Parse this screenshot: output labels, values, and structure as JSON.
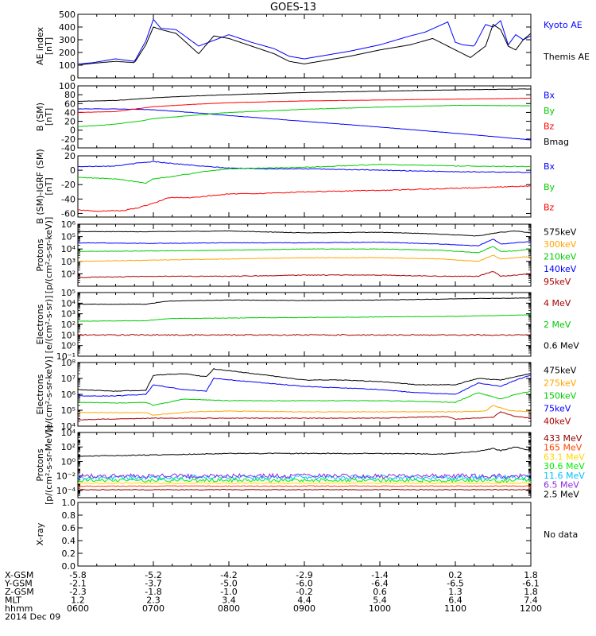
{
  "title": "GOES-13",
  "footer": {
    "rows": [
      {
        "label": "X-GSM",
        "values": [
          "-5.8",
          "-5.2",
          "-4.2",
          "-2.9",
          "-1.4",
          "0.2",
          "1.8"
        ]
      },
      {
        "label": "Y-GSM",
        "values": [
          "-2.1",
          "-3.7",
          "-5.0",
          "-6.0",
          "-6.4",
          "-6.5",
          "-6.1"
        ]
      },
      {
        "label": "Z-GSM",
        "values": [
          "-2.3",
          "-1.8",
          "-1.0",
          "-0.2",
          "0.6",
          "1.3",
          "1.8"
        ]
      },
      {
        "label": "MLT",
        "values": [
          "1.2",
          "2.3",
          "3.4",
          "4.4",
          "5.4",
          "6.4",
          "7.4"
        ]
      },
      {
        "label": "hhmm",
        "values": [
          "0600",
          "0700",
          "0800",
          "0900",
          "1000",
          "1100",
          "1200"
        ]
      }
    ],
    "date": "2014 Dec 09"
  },
  "chart_data": [
    {
      "type": "line",
      "id": "ae",
      "ylabel": "AE index\n[nT]",
      "yscale": "linear",
      "ylim": [
        0,
        500
      ],
      "yticks": [
        0,
        100,
        200,
        300,
        400,
        500
      ],
      "ytick_labels": [
        "0",
        "100",
        "200",
        "300",
        "400",
        "500"
      ],
      "xlim": [
        6,
        12
      ],
      "xtick_labels": [
        "0600",
        "0700",
        "0800",
        "0900",
        "1000",
        "1100",
        "1200"
      ],
      "series": [
        {
          "name": "Kyoto AE",
          "color": "#0000ff",
          "noise": 0.08,
          "x": [
            6.0,
            6.2,
            6.5,
            6.75,
            6.9,
            7.0,
            7.1,
            7.3,
            7.6,
            8.0,
            8.3,
            8.6,
            8.8,
            9.0,
            9.3,
            9.6,
            10.0,
            10.4,
            10.6,
            10.9,
            11.0,
            11.1,
            11.25,
            11.4,
            11.5,
            11.6,
            11.7,
            11.8,
            11.9,
            12.0
          ],
          "y": [
            110,
            120,
            150,
            130,
            290,
            460,
            390,
            380,
            250,
            340,
            280,
            230,
            170,
            150,
            180,
            210,
            260,
            330,
            360,
            440,
            280,
            260,
            250,
            420,
            400,
            450,
            260,
            340,
            300,
            330
          ]
        },
        {
          "name": "Themis AE",
          "color": "#000000",
          "noise": 0.06,
          "x": [
            6.0,
            6.2,
            6.5,
            6.75,
            6.9,
            7.0,
            7.1,
            7.3,
            7.6,
            7.8,
            8.0,
            8.3,
            8.6,
            8.8,
            9.0,
            9.3,
            9.6,
            10.0,
            10.4,
            10.7,
            11.0,
            11.2,
            11.4,
            11.5,
            11.6,
            11.7,
            11.8,
            11.9,
            12.0
          ],
          "y": [
            100,
            115,
            130,
            120,
            260,
            400,
            380,
            350,
            190,
            330,
            310,
            250,
            190,
            130,
            110,
            140,
            170,
            220,
            260,
            310,
            220,
            160,
            250,
            420,
            380,
            250,
            220,
            300,
            350
          ]
        }
      ]
    },
    {
      "type": "line",
      "id": "bsm",
      "ylabel": "B (SM)\n[nT]",
      "yscale": "linear",
      "ylim": [
        -40,
        100
      ],
      "yticks": [
        -40,
        -20,
        0,
        20,
        40,
        60,
        80,
        100
      ],
      "ytick_labels": [
        "-40",
        "-20",
        "0",
        "20",
        "40",
        "60",
        "80",
        "100"
      ],
      "xlim": [
        6,
        12
      ],
      "series": [
        {
          "name": "Bx",
          "color": "#0000ff",
          "noise": 0.3,
          "x": [
            6.0,
            6.5,
            7.0,
            7.5,
            8.0,
            9.0,
            10.0,
            11.0,
            12.0
          ],
          "y": [
            48,
            48,
            46,
            40,
            33,
            20,
            7,
            -7,
            -22
          ]
        },
        {
          "name": "By",
          "color": "#00cc00",
          "noise": 0.4,
          "x": [
            6.0,
            6.4,
            6.8,
            7.0,
            7.5,
            8.0,
            9.0,
            10.0,
            11.0,
            12.0
          ],
          "y": [
            8,
            12,
            20,
            26,
            33,
            40,
            47,
            52,
            56,
            55
          ]
        },
        {
          "name": "Bz",
          "color": "#ff0000",
          "noise": 0.3,
          "x": [
            6.0,
            6.5,
            7.0,
            7.5,
            8.0,
            9.0,
            10.0,
            11.0,
            12.0
          ],
          "y": [
            40,
            42,
            53,
            58,
            62,
            66,
            68,
            70,
            72
          ]
        },
        {
          "name": "Bmag",
          "color": "#000000",
          "noise": 0.3,
          "x": [
            6.0,
            6.5,
            7.0,
            7.5,
            8.0,
            9.0,
            10.0,
            11.0,
            12.0
          ],
          "y": [
            65,
            67,
            73,
            77,
            80,
            85,
            88,
            91,
            93
          ]
        }
      ]
    },
    {
      "type": "line",
      "id": "bigrf",
      "ylabel": "B (SM)-IGRF (SM)\n[nT]",
      "yscale": "linear",
      "ylim": [
        -65,
        20
      ],
      "yticks": [
        -60,
        -40,
        -20,
        0,
        20
      ],
      "ytick_labels": [
        "-60",
        "-40",
        "-20",
        "0",
        "20"
      ],
      "xlim": [
        6,
        12
      ],
      "series": [
        {
          "name": "Bx",
          "color": "#0000ff",
          "noise": 0.5,
          "x": [
            6.0,
            6.5,
            6.8,
            7.0,
            7.3,
            7.6,
            8.0,
            8.5,
            9.0,
            10.0,
            11.0,
            12.0
          ],
          "y": [
            5,
            6,
            10,
            12,
            9,
            6,
            3,
            2,
            2,
            0,
            -2,
            -3
          ]
        },
        {
          "name": "By",
          "color": "#00cc00",
          "noise": 0.5,
          "x": [
            6.0,
            6.5,
            6.9,
            7.0,
            7.3,
            7.6,
            8.0,
            8.5,
            9.0,
            10.0,
            11.0,
            12.0
          ],
          "y": [
            -10,
            -12,
            -18,
            -12,
            -8,
            -3,
            2,
            3,
            4,
            8,
            6,
            5
          ]
        },
        {
          "name": "Bz",
          "color": "#ff0000",
          "noise": 0.6,
          "x": [
            6.0,
            6.3,
            6.6,
            6.8,
            7.0,
            7.2,
            7.5,
            8.0,
            8.5,
            9.0,
            10.0,
            11.0,
            12.0
          ],
          "y": [
            -55,
            -57,
            -56,
            -52,
            -46,
            -38,
            -38,
            -33,
            -32,
            -30,
            -28,
            -25,
            -22
          ]
        }
      ]
    },
    {
      "type": "line",
      "id": "protons1",
      "ylabel": "Protons\n[p/(cm²-s-sr-keV)]",
      "yscale": "log",
      "ylim": [
        1,
        6
      ],
      "yticks": [
        2,
        3,
        4,
        5,
        6
      ],
      "ytick_labels": [
        "10²",
        "10³",
        "10⁴",
        "10⁵",
        "10⁶"
      ],
      "xlim": [
        6,
        12
      ],
      "series": [
        {
          "name": "575keV",
          "color": "#000000",
          "noise": 0.02,
          "x": [
            6.0,
            7.0,
            8.0,
            9.0,
            10.0,
            10.8,
            11.3,
            11.6,
            11.8,
            12.0
          ],
          "y": [
            5.4,
            5.4,
            5.45,
            5.3,
            5.35,
            5.2,
            5.05,
            5.35,
            5.45,
            5.3
          ]
        },
        {
          "name": "300keV",
          "color": "#ffa500",
          "noise": 0.02,
          "x": [
            6.0,
            7.0,
            8.0,
            9.0,
            10.0,
            10.8,
            11.3,
            11.5,
            11.6,
            11.8,
            12.0
          ],
          "y": [
            3.0,
            3.1,
            3.2,
            3.3,
            3.3,
            3.2,
            3.0,
            3.5,
            3.2,
            3.3,
            3.4
          ]
        },
        {
          "name": "210keV",
          "color": "#00cc00",
          "noise": 0.02,
          "x": [
            6.0,
            7.0,
            8.0,
            9.0,
            10.0,
            10.8,
            11.3,
            11.5,
            11.6,
            11.8,
            12.0
          ],
          "y": [
            3.8,
            3.85,
            3.9,
            4.0,
            4.0,
            3.9,
            3.7,
            4.2,
            3.8,
            3.85,
            4.0
          ]
        },
        {
          "name": "140keV",
          "color": "#0000ff",
          "noise": 0.02,
          "x": [
            6.0,
            7.0,
            8.0,
            9.0,
            10.0,
            10.8,
            11.3,
            11.5,
            11.6,
            11.8,
            12.0
          ],
          "y": [
            4.5,
            4.45,
            4.5,
            4.5,
            4.55,
            4.4,
            4.25,
            4.8,
            4.4,
            4.5,
            4.6
          ]
        },
        {
          "name": "95keV",
          "color": "#aa0000",
          "noise": 0.03,
          "x": [
            6.0,
            7.0,
            8.0,
            9.0,
            10.0,
            10.8,
            11.3,
            11.5,
            11.6,
            11.8,
            12.0
          ],
          "y": [
            1.7,
            1.8,
            1.8,
            1.9,
            1.9,
            1.8,
            1.8,
            2.2,
            1.8,
            1.9,
            2.0
          ]
        }
      ]
    },
    {
      "type": "line",
      "id": "electrons1",
      "ylabel": "Electrons\n[e/(cm²-s-sr)]",
      "yscale": "log",
      "ylim": [
        -1,
        5
      ],
      "yticks": [
        -1,
        0,
        1,
        2,
        3,
        4,
        5
      ],
      "ytick_labels": [
        "10⁻¹",
        "10⁰",
        "10¹",
        "10²",
        "10³",
        "10⁴",
        "10⁵"
      ],
      "xlim": [
        6,
        12
      ],
      "series": [
        {
          "name": "4 MeV",
          "color": "#aa0000",
          "noise": 0.06,
          "x": [
            6.0,
            12.0
          ],
          "y": [
            1.0,
            1.0
          ]
        },
        {
          "name": "2 MeV",
          "color": "#00cc00",
          "noise": 0.02,
          "x": [
            6.0,
            6.9,
            7.2,
            8.0,
            9.0,
            10.0,
            11.0,
            12.0
          ],
          "y": [
            2.3,
            2.35,
            2.55,
            2.6,
            2.65,
            2.7,
            2.75,
            2.9
          ]
        },
        {
          "name": "0.6 MeV",
          "color": "#000000",
          "noise": 0.02,
          "x": [
            6.0,
            6.9,
            7.2,
            8.0,
            9.0,
            10.0,
            11.0,
            12.0
          ],
          "y": [
            3.9,
            3.9,
            4.2,
            4.3,
            4.25,
            4.3,
            4.4,
            4.5
          ]
        }
      ]
    },
    {
      "type": "line",
      "id": "electrons2",
      "ylabel": "Electrons\n[e/(cm²-s-sr-keV)]",
      "yscale": "log",
      "ylim": [
        4,
        8
      ],
      "yticks": [
        4,
        5,
        6,
        7,
        8
      ],
      "ytick_labels": [
        "10⁴",
        "10⁵",
        "10⁶",
        "10⁷",
        "10⁸"
      ],
      "xlim": [
        6,
        12
      ],
      "series": [
        {
          "name": "475keV",
          "color": "#000000",
          "noise": 0.02,
          "x": [
            6.0,
            6.5,
            6.9,
            7.0,
            7.4,
            7.7,
            7.8,
            8.5,
            9.0,
            9.5,
            10.0,
            10.5,
            11.0,
            11.3,
            11.6,
            11.8,
            12.0
          ],
          "y": [
            6.3,
            6.2,
            6.25,
            7.2,
            7.3,
            7.1,
            7.6,
            7.2,
            6.9,
            6.9,
            6.8,
            6.6,
            6.6,
            7.0,
            6.9,
            7.1,
            7.3
          ]
        },
        {
          "name": "275keV",
          "color": "#ffa500",
          "noise": 0.02,
          "x": [
            6.0,
            6.9,
            7.0,
            7.5,
            8.0,
            9.0,
            10.0,
            10.5,
            11.0,
            11.4,
            11.5,
            11.7,
            12.0
          ],
          "y": [
            4.85,
            4.85,
            4.7,
            4.9,
            4.95,
            4.9,
            4.9,
            4.9,
            4.9,
            4.95,
            5.3,
            5.0,
            4.9
          ]
        },
        {
          "name": "150keV",
          "color": "#00cc00",
          "noise": 0.02,
          "x": [
            6.0,
            6.5,
            6.9,
            7.0,
            7.4,
            8.0,
            9.0,
            10.0,
            10.5,
            11.0,
            11.3,
            11.6,
            11.8,
            12.0
          ],
          "y": [
            5.5,
            5.45,
            5.5,
            5.3,
            5.7,
            5.6,
            5.6,
            5.6,
            5.55,
            5.5,
            6.1,
            5.7,
            6.0,
            6.2
          ]
        },
        {
          "name": "75keV",
          "color": "#0000ff",
          "noise": 0.02,
          "x": [
            6.0,
            6.5,
            6.9,
            7.0,
            7.4,
            7.7,
            7.8,
            8.5,
            9.0,
            9.5,
            10.0,
            10.5,
            11.0,
            11.3,
            11.6,
            11.8,
            12.0
          ],
          "y": [
            5.9,
            5.9,
            6.0,
            6.6,
            6.3,
            6.2,
            7.0,
            6.7,
            6.5,
            6.4,
            6.3,
            6.1,
            6.0,
            6.7,
            6.5,
            6.9,
            7.2
          ]
        },
        {
          "name": "40keV",
          "color": "#aa0000",
          "noise": 0.02,
          "x": [
            6.0,
            6.5,
            7.0,
            8.0,
            9.0,
            10.0,
            10.9,
            11.0,
            11.5,
            11.6,
            11.8,
            12.0
          ],
          "y": [
            4.4,
            4.45,
            4.5,
            4.5,
            4.5,
            4.5,
            4.6,
            4.45,
            4.55,
            4.9,
            4.6,
            4.5
          ]
        }
      ]
    },
    {
      "type": "line",
      "id": "protons2",
      "ylabel": "Protons\n[p/(cm²-s-sr-MeV)]",
      "yscale": "log",
      "ylim": [
        -5,
        4
      ],
      "yticks": [
        -4,
        -2,
        0,
        2,
        4
      ],
      "ytick_labels": [
        "10⁻⁴",
        "10⁻²",
        "10⁰",
        "10²",
        "10⁴"
      ],
      "xlim": [
        6,
        12
      ],
      "series": [
        {
          "name": "433 MeV",
          "color": "#8b0000",
          "noise": 0.05,
          "x": [
            6.0,
            12.0
          ],
          "y": [
            -3.9,
            -3.9
          ]
        },
        {
          "name": "165 MeV",
          "color": "#ff4500",
          "noise": 0.05,
          "x": [
            6.0,
            12.0
          ],
          "y": [
            -3.4,
            -3.4
          ]
        },
        {
          "name": "63.1 MeV",
          "color": "#ffd700",
          "noise": 0.08,
          "x": [
            6.0,
            12.0
          ],
          "y": [
            -3.0,
            -3.0
          ]
        },
        {
          "name": "30.6 MeV",
          "color": "#00ee00",
          "noise": 0.25,
          "x": [
            6.0,
            12.0
          ],
          "y": [
            -2.6,
            -2.6
          ]
        },
        {
          "name": "11.6 MeV",
          "color": "#00bfff",
          "noise": 0.3,
          "x": [
            6.0,
            12.0
          ],
          "y": [
            -2.2,
            -2.2
          ]
        },
        {
          "name": "6.5 MeV",
          "color": "#8a2be2",
          "noise": 0.3,
          "x": [
            6.0,
            12.0
          ],
          "y": [
            -2.0,
            -2.0
          ]
        },
        {
          "name": "2.5 MeV",
          "color": "#000000",
          "noise": 0.06,
          "x": [
            6.0,
            7.0,
            8.0,
            9.0,
            10.0,
            10.8,
            11.3,
            11.5,
            11.6,
            11.8,
            12.0
          ],
          "y": [
            0.7,
            0.9,
            1.1,
            1.1,
            1.1,
            1.0,
            1.4,
            1.8,
            1.5,
            2.0,
            1.5
          ]
        }
      ]
    },
    {
      "type": "line",
      "id": "xray",
      "ylabel": "X-ray",
      "yscale": "linear",
      "ylim": [
        0,
        1
      ],
      "yticks": [
        0,
        0.2,
        0.4,
        0.6,
        0.8,
        1.0
      ],
      "ytick_labels": [
        "0.0",
        "0.2",
        "0.4",
        "0.6",
        "0.8",
        "1.0"
      ],
      "xlim": [
        6,
        12
      ],
      "series": [],
      "note": "No data"
    }
  ]
}
